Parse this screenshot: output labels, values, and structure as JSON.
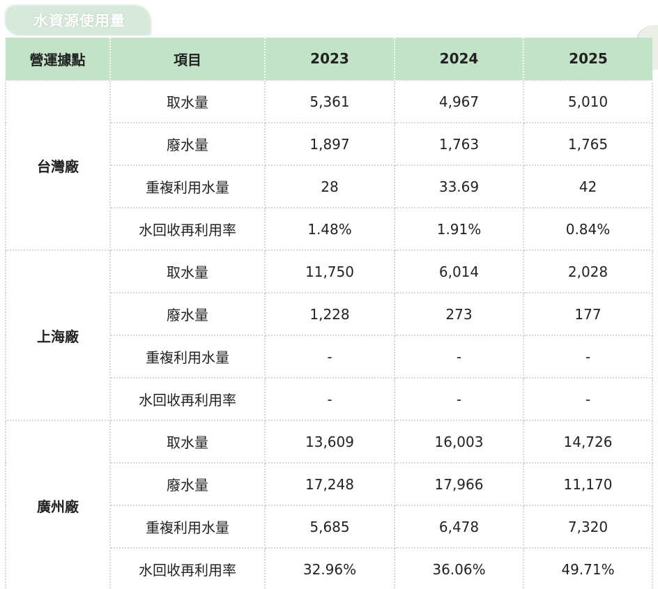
{
  "title": "水資源使用量",
  "header": {
    "site": "營運據點",
    "item": "項目",
    "y2023": "2023",
    "y2024": "2024",
    "y2025": "2025"
  },
  "sites": [
    {
      "name": "台灣廠",
      "rows": [
        {
          "item": "取水量",
          "y2023": "5,361",
          "y2024": "4,967",
          "y2025": "5,010"
        },
        {
          "item": "廢水量",
          "y2023": "1,897",
          "y2024": "1,763",
          "y2025": "1,765"
        },
        {
          "item": "重複利用水量",
          "y2023": "28",
          "y2024": "33.69",
          "y2025": "42"
        },
        {
          "item": "水回收再利用率",
          "y2023": "1.48%",
          "y2024": "1.91%",
          "y2025": "0.84%"
        }
      ]
    },
    {
      "name": "上海廠",
      "rows": [
        {
          "item": "取水量",
          "y2023": "11,750",
          "y2024": "6,014",
          "y2025": "2,028"
        },
        {
          "item": "廢水量",
          "y2023": "1,228",
          "y2024": "273",
          "y2025": "177"
        },
        {
          "item": "重複利用水量",
          "y2023": "-",
          "y2024": "-",
          "y2025": "-"
        },
        {
          "item": "水回收再利用率",
          "y2023": "-",
          "y2024": "-",
          "y2025": "-"
        }
      ]
    },
    {
      "name": "廣州廠",
      "rows": [
        {
          "item": "取水量",
          "y2023": "13,609",
          "y2024": "16,003",
          "y2025": "14,726"
        },
        {
          "item": "廢水量",
          "y2023": "17,248",
          "y2024": "17,966",
          "y2025": "11,170"
        },
        {
          "item": "重複利用水量",
          "y2023": "5,685",
          "y2024": "6,478",
          "y2025": "7,320"
        },
        {
          "item": "水回收再利用率",
          "y2023": "32.96%",
          "y2024": "36.06%",
          "y2025": "49.71%"
        }
      ]
    }
  ],
  "colors": {
    "header_bg": "#c3e3c8",
    "title_tab_bg": "#d7e9da"
  }
}
